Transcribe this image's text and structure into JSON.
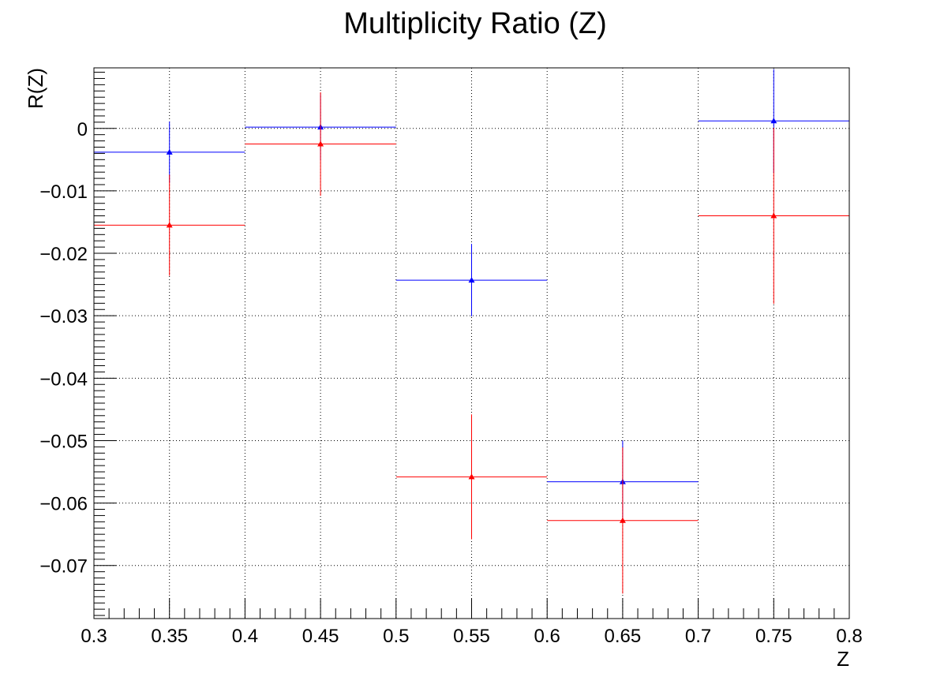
{
  "chart_data": {
    "type": "scatter",
    "title": "Multiplicity Ratio (Z)",
    "xlabel": "Z",
    "ylabel": "R(Z)",
    "xlim": [
      0.3,
      0.8
    ],
    "ylim": [
      -0.0785,
      0.0097
    ],
    "x_ticks": [
      "0.3",
      "0.35",
      "0.4",
      "0.45",
      "0.5",
      "0.55",
      "0.6",
      "0.65",
      "0.7",
      "0.75",
      "0.8"
    ],
    "y_ticks": [
      "0",
      "−0.01",
      "−0.02",
      "−0.03",
      "−0.04",
      "−0.05",
      "−0.06",
      "−0.07"
    ],
    "grid": true,
    "series": [
      {
        "color": "#0000ff",
        "points": [
          {
            "x": 0.35,
            "y": -0.0038,
            "xerr": 0.05,
            "yerr": 0.0049
          },
          {
            "x": 0.45,
            "y": 0.0002,
            "xerr": 0.05,
            "yerr": 0.0053
          },
          {
            "x": 0.55,
            "y": -0.0243,
            "xerr": 0.05,
            "yerr": 0.0058
          },
          {
            "x": 0.65,
            "y": -0.0566,
            "xerr": 0.05,
            "yerr": 0.0066
          },
          {
            "x": 0.75,
            "y": 0.0012,
            "xerr": 0.05,
            "yerr": 0.0083
          }
        ]
      },
      {
        "color": "#ff0000",
        "points": [
          {
            "x": 0.35,
            "y": -0.0155,
            "xerr": 0.05,
            "yerr": 0.0081
          },
          {
            "x": 0.45,
            "y": -0.0025,
            "xerr": 0.05,
            "yerr": 0.0083
          },
          {
            "x": 0.55,
            "y": -0.0558,
            "xerr": 0.05,
            "yerr": 0.01
          },
          {
            "x": 0.65,
            "y": -0.0628,
            "xerr": 0.05,
            "yerr": 0.0117
          },
          {
            "x": 0.75,
            "y": -0.014,
            "xerr": 0.05,
            "yerr": 0.0141
          }
        ]
      }
    ]
  }
}
